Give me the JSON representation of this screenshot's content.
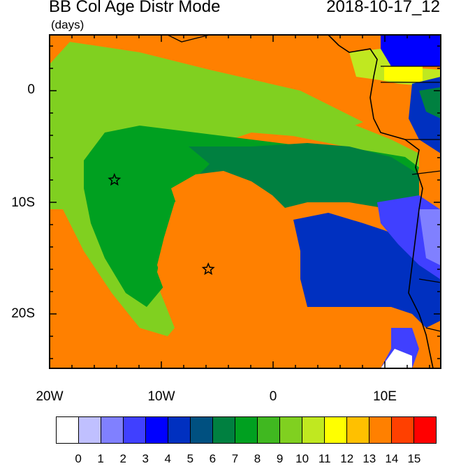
{
  "title": "BB Col Age Distr Mode",
  "units": "(days)",
  "date": "2018-10-17_12",
  "y_axis_labels": [
    "0",
    "10S",
    "20S"
  ],
  "x_axis_labels": [
    "20W",
    "10W",
    "0",
    "10E"
  ],
  "colorbar": {
    "colors": [
      "#ffffff",
      "#c0c0ff",
      "#8080ff",
      "#4040ff",
      "#0000ff",
      "#0030c0",
      "#005080",
      "#008040",
      "#00a020",
      "#40b820",
      "#80d020",
      "#c0e820",
      "#ffff00",
      "#ffc000",
      "#ff8000",
      "#ff4000",
      "#ff0000"
    ],
    "labels": [
      "0",
      "1",
      "2",
      "3",
      "4",
      "5",
      "6",
      "7",
      "8",
      "9",
      "10",
      "11",
      "12",
      "13",
      "14",
      "15"
    ]
  },
  "markers": [
    {
      "name": "star",
      "lon": -14.2,
      "lat": -8.0
    },
    {
      "name": "star",
      "lon": -5.8,
      "lat": -16.0
    }
  ]
}
